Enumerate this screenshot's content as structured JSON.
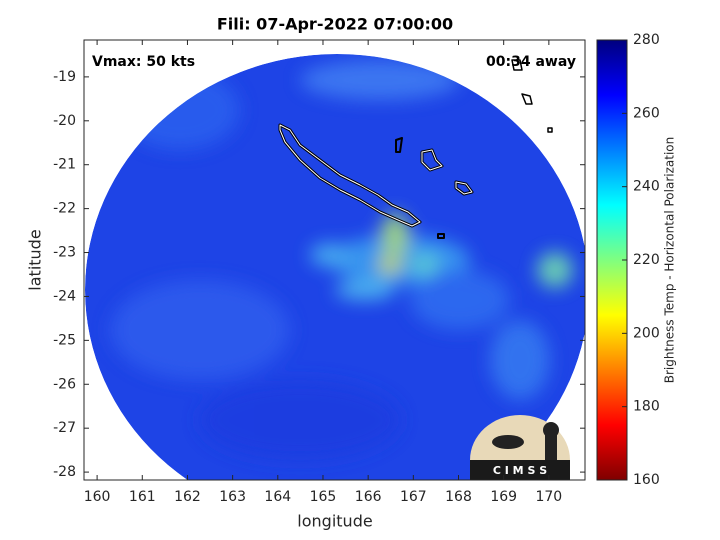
{
  "chart_data": {
    "type": "map",
    "title": "Fili: 07-Apr-2022 07:00:00",
    "annotations": [
      "Vmax: 50 kts",
      "00:34 away"
    ],
    "x_label": "longitude",
    "y_label": "latitude",
    "xlim": [
      159.71,
      170.8
    ],
    "ylim": [
      -28.18,
      -18.16
    ],
    "xticks": [
      160,
      161,
      162,
      163,
      164,
      165,
      166,
      167,
      168,
      169,
      170
    ],
    "yticks": [
      -28,
      -27,
      -26,
      -25,
      -24,
      -23,
      -22,
      -21,
      -20,
      -19
    ],
    "colorbar": {
      "label": "Brightness Temp - Horizontal Polarization",
      "lim": [
        160,
        280
      ],
      "ticks": [
        160,
        180,
        200,
        220,
        240,
        260,
        280
      ]
    },
    "logo": "C I M S S"
  }
}
